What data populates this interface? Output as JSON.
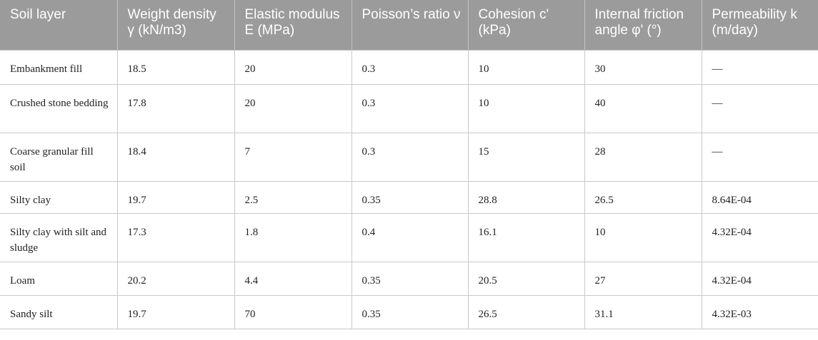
{
  "table": {
    "headers": [
      "Soil layer",
      "Weight density γ (kN/m3)",
      "Elastic modulus E (MPa)",
      "Poisson’s ratio ν",
      "Cohesion c' (kPa)",
      "Internal friction angle φ' (°)",
      "Permeability k (m/day)"
    ],
    "rows": [
      [
        "Embankment fill",
        "18.5",
        "20",
        "0.3",
        "10",
        "30",
        "—"
      ],
      [
        "Crushed stone bedding",
        "17.8",
        "20",
        "0.3",
        "10",
        "40",
        "—"
      ],
      [
        "Coarse granular fill soil",
        "18.4",
        "7",
        "0.3",
        "15",
        "28",
        "—"
      ],
      [
        "Silty clay",
        "19.7",
        "2.5",
        "0.35",
        "28.8",
        "26.5",
        "8.64E-04"
      ],
      [
        "Silty clay with silt and sludge",
        "17.3",
        "1.8",
        "0.4",
        "16.1",
        "10",
        "4.32E-04"
      ],
      [
        "Loam",
        "20.2",
        "4.4",
        "0.35",
        "20.5",
        "27",
        "4.32E-04"
      ],
      [
        "Sandy silt",
        "19.7",
        "70",
        "0.35",
        "26.5",
        "31.1",
        "4.32E-03"
      ]
    ]
  }
}
